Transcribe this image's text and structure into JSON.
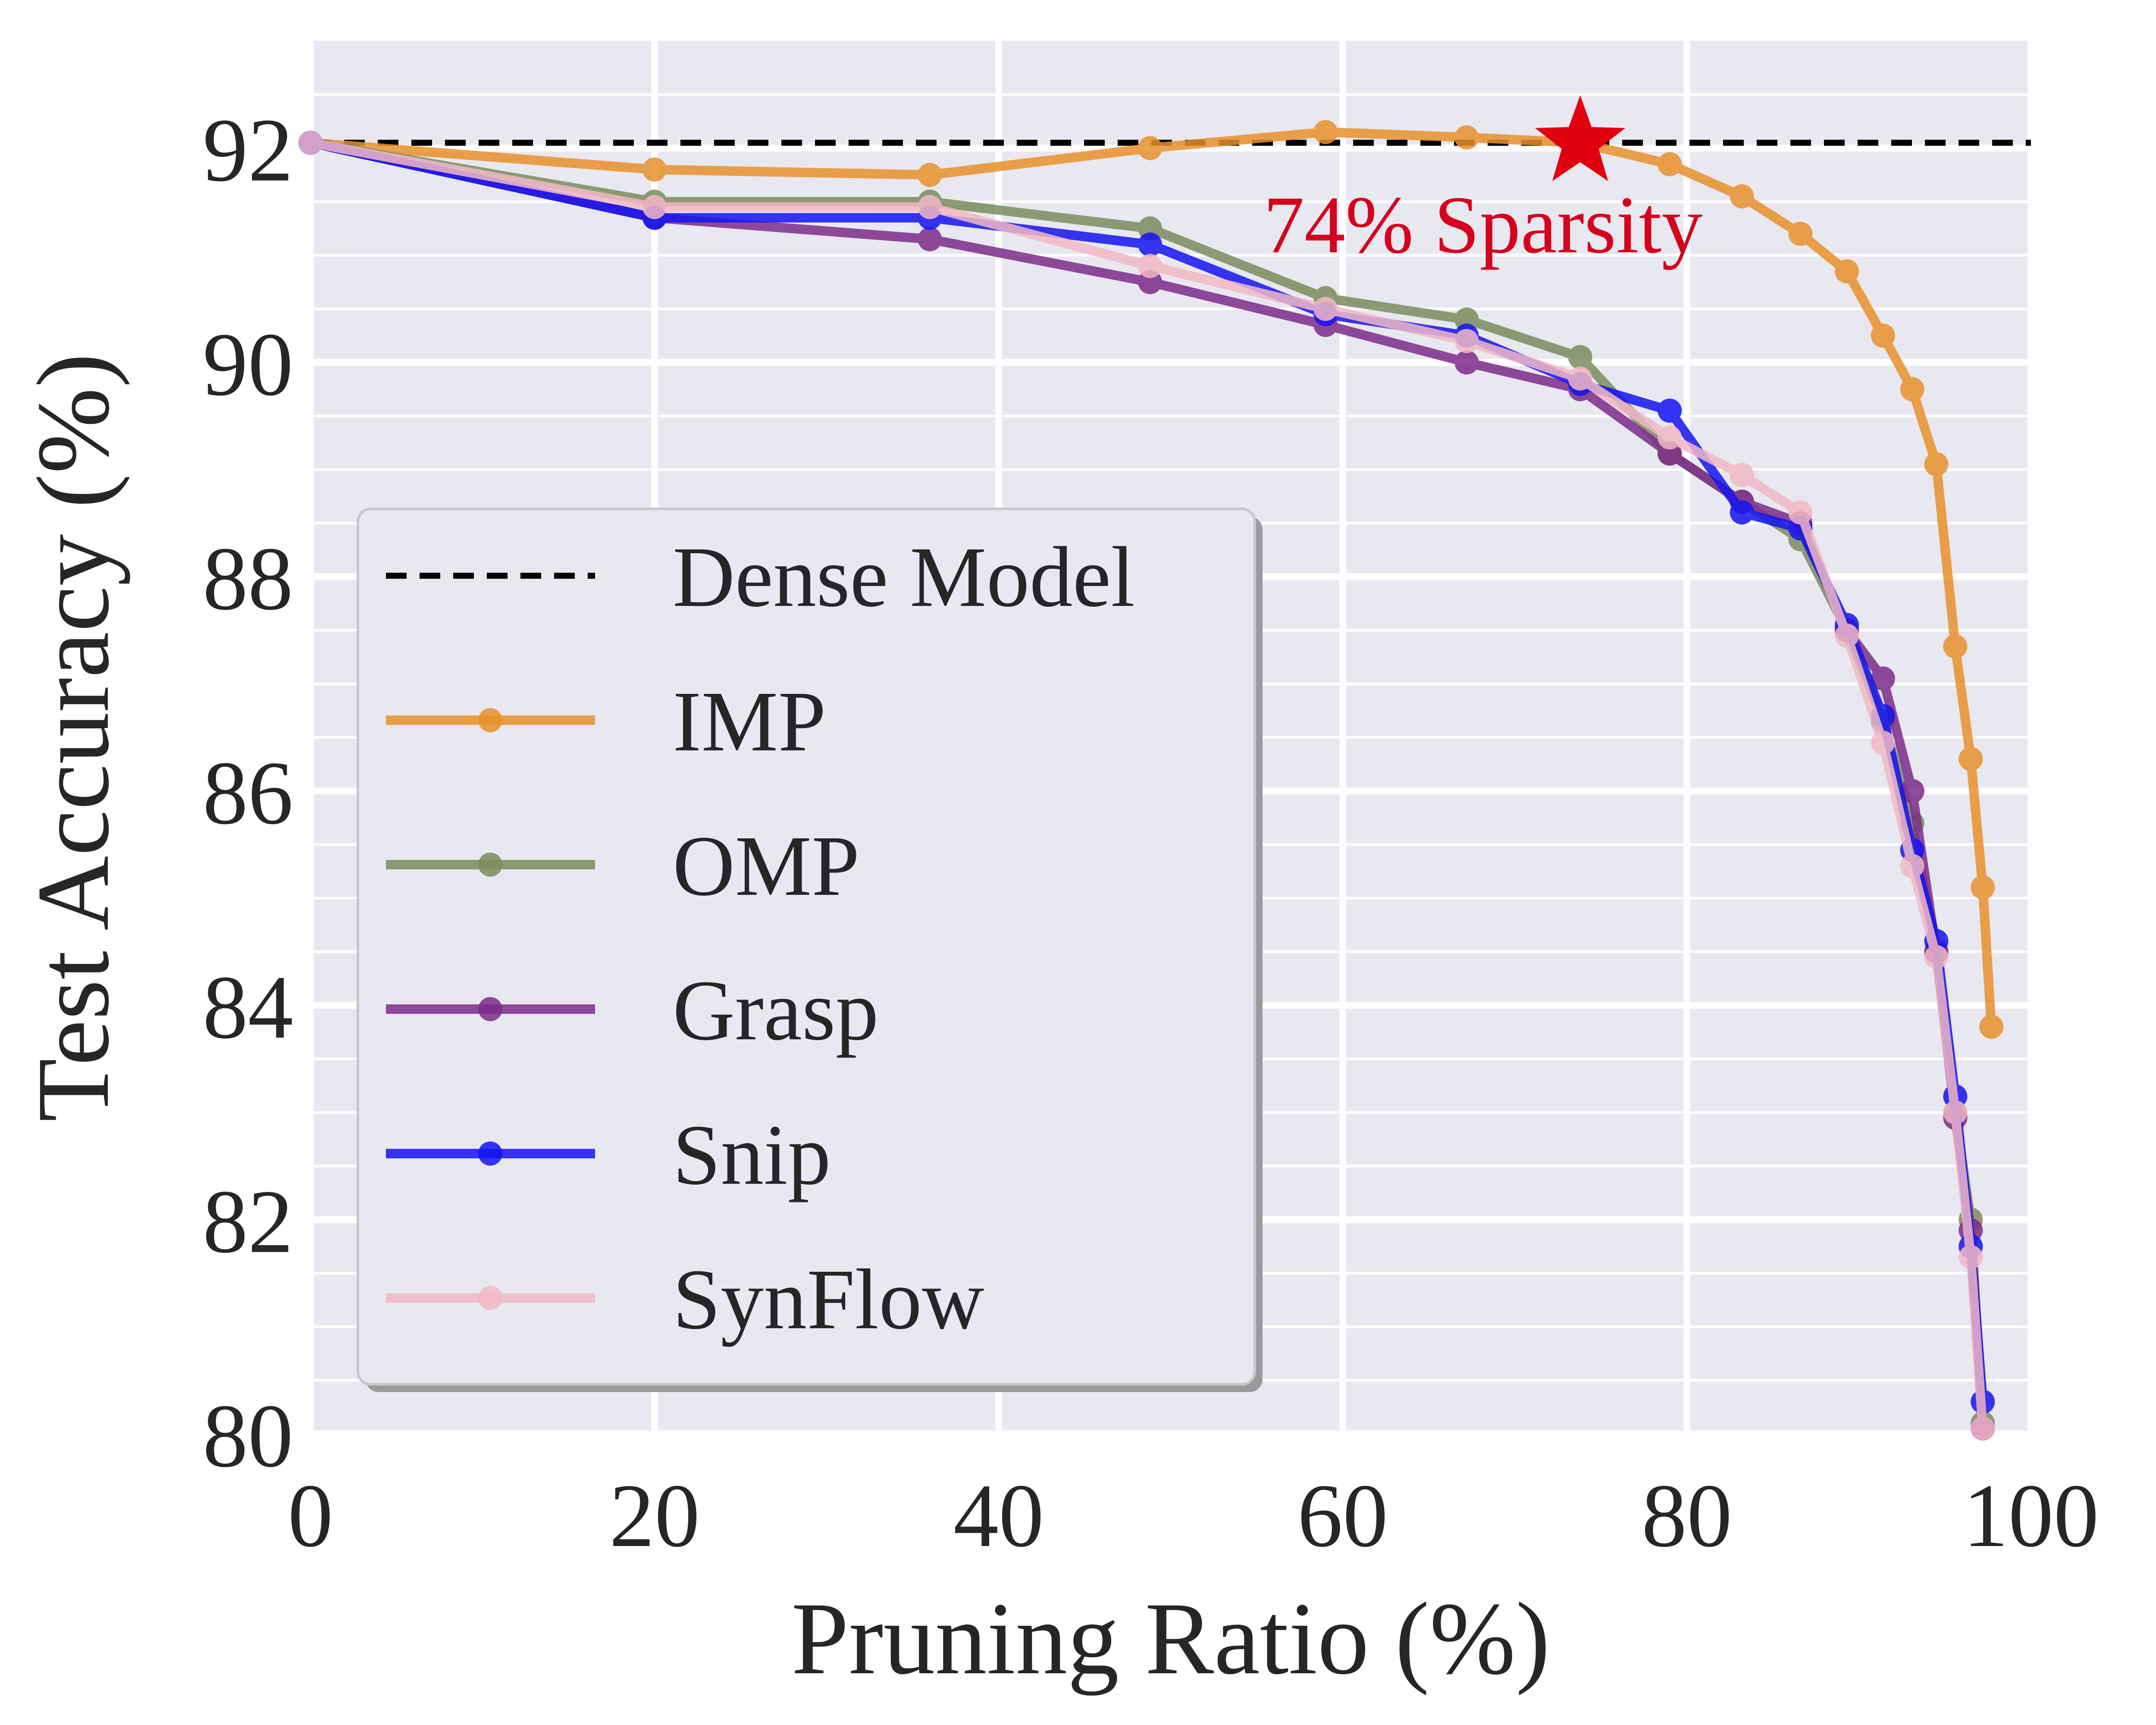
{
  "chart_data": {
    "type": "line",
    "xlabel": "Pruning Ratio (%)",
    "ylabel": "Test Accuracy (%)",
    "xlim": [
      0,
      100
    ],
    "ylim": [
      80,
      93
    ],
    "x_ticks": [
      0,
      20,
      40,
      60,
      80,
      100
    ],
    "y_ticks": [
      80,
      82,
      84,
      86,
      88,
      90,
      92
    ],
    "grid": true,
    "legend_placement": "lower-left",
    "dense_model": {
      "name": "Dense Model",
      "y": 92.05,
      "color": "#000000",
      "style": "dashed"
    },
    "series": [
      {
        "name": "IMP",
        "color": "#e8912c",
        "x": [
          0,
          20,
          36,
          48.8,
          59,
          67.2,
          73.8,
          79,
          83.2,
          86.6,
          89.3,
          91.4,
          93.1,
          94.5,
          95.6,
          96.5,
          97.2,
          97.7
        ],
        "y": [
          92.05,
          91.8,
          91.75,
          92.0,
          92.15,
          92.1,
          92.05,
          91.85,
          91.55,
          91.2,
          90.85,
          90.25,
          89.75,
          89.05,
          87.35,
          86.3,
          85.1,
          83.8
        ]
      },
      {
        "name": "OMP",
        "color": "#7b8c5e",
        "x": [
          0,
          20,
          36,
          48.8,
          59,
          67.2,
          73.8,
          79,
          83.2,
          86.6,
          89.3,
          91.4,
          93.1,
          94.5,
          95.6,
          96.5,
          97.2
        ],
        "y": [
          92.05,
          91.5,
          91.5,
          91.25,
          90.6,
          90.4,
          90.05,
          89.15,
          88.7,
          88.35,
          87.5,
          86.65,
          85.7,
          84.5,
          83.0,
          82.0,
          80.1
        ]
      },
      {
        "name": "Grasp",
        "color": "#7d2b8b",
        "x": [
          0,
          20,
          36,
          48.8,
          59,
          67.2,
          73.8,
          79,
          83.2,
          86.6,
          89.3,
          91.4,
          93.1,
          94.5,
          95.6,
          96.5,
          97.2
        ],
        "y": [
          92.05,
          91.35,
          91.15,
          90.75,
          90.35,
          90.0,
          89.75,
          89.15,
          88.7,
          88.5,
          87.5,
          87.05,
          86.0,
          84.5,
          82.95,
          81.9,
          80.05
        ]
      },
      {
        "name": "Snip",
        "color": "#1414f0",
        "x": [
          0,
          20,
          36,
          48.8,
          59,
          67.2,
          73.8,
          79,
          83.2,
          86.6,
          89.3,
          91.4,
          93.1,
          94.5,
          95.6,
          96.5,
          97.2
        ],
        "y": [
          92.05,
          91.35,
          91.35,
          91.1,
          90.45,
          90.25,
          89.8,
          89.55,
          88.6,
          88.45,
          87.55,
          86.7,
          85.45,
          84.6,
          83.15,
          81.75,
          80.3
        ]
      },
      {
        "name": "SynFlow",
        "color": "#f2b8c6",
        "x": [
          0,
          20,
          36,
          48.8,
          59,
          67.2,
          73.8,
          79,
          83.2,
          86.6,
          89.3,
          91.4,
          93.1,
          94.5,
          95.6,
          96.5,
          97.2
        ],
        "y": [
          92.05,
          91.45,
          91.45,
          90.9,
          90.5,
          90.2,
          89.85,
          89.3,
          88.95,
          88.6,
          87.45,
          86.45,
          85.3,
          84.45,
          83.0,
          81.65,
          80.05
        ]
      }
    ],
    "annotation": {
      "text": "74% Sparsity",
      "x": 73.8,
      "y": 92.05,
      "marker": "star",
      "color": "#e00010"
    }
  }
}
